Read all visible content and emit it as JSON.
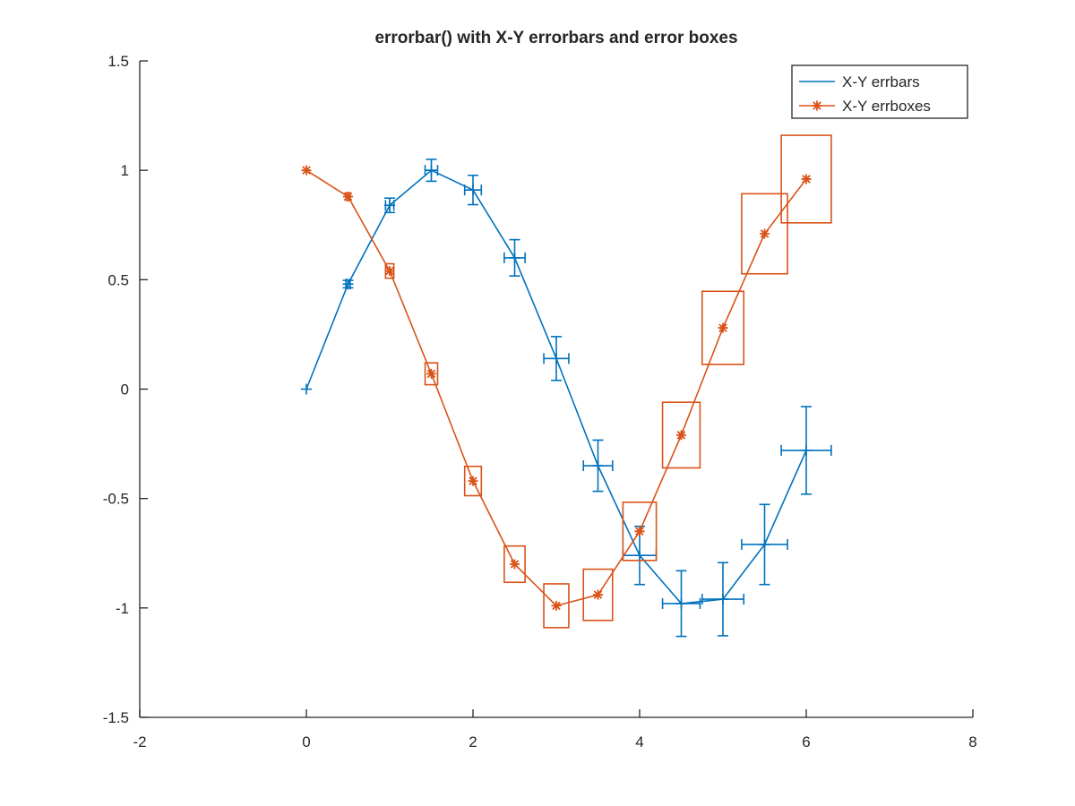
{
  "chart_data": {
    "type": "line",
    "title": "errorbar() with X-Y errorbars and error boxes",
    "xlabel": "",
    "ylabel": "",
    "xlim": [
      -2,
      8
    ],
    "ylim": [
      -1.5,
      1.5
    ],
    "xticks": [
      -2,
      0,
      2,
      4,
      6,
      8
    ],
    "yticks": [
      -1.5,
      -1,
      -0.5,
      0,
      0.5,
      1,
      1.5
    ],
    "xtick_labels": [
      "-2",
      "0",
      "2",
      "4",
      "6",
      "8"
    ],
    "ytick_labels": [
      "-1.5",
      "-1",
      "-0.5",
      "0",
      "0.5",
      "1",
      "1.5"
    ],
    "grid": false,
    "legend_position": "top-right",
    "series": [
      {
        "name": "X-Y errbars",
        "color": "#0072bd",
        "style": "errorbars",
        "marker": "plus",
        "x": [
          0,
          0.5,
          1,
          1.5,
          2,
          2.5,
          3,
          3.5,
          4,
          4.5,
          5,
          5.5,
          6
        ],
        "y": [
          0,
          0.48,
          0.84,
          1.0,
          0.91,
          0.6,
          0.14,
          -0.35,
          -0.76,
          -0.98,
          -0.96,
          -0.71,
          -0.28
        ],
        "xerr": [
          0,
          0.025,
          0.05,
          0.075,
          0.1,
          0.125,
          0.15,
          0.175,
          0.2,
          0.225,
          0.25,
          0.275,
          0.3
        ],
        "yerr": [
          0,
          0.017,
          0.033,
          0.05,
          0.067,
          0.083,
          0.1,
          0.117,
          0.133,
          0.15,
          0.167,
          0.183,
          0.2
        ]
      },
      {
        "name": "X-Y errboxes",
        "color": "#d95319",
        "style": "errorboxes",
        "marker": "asterisk",
        "x": [
          0,
          0.5,
          1,
          1.5,
          2,
          2.5,
          3,
          3.5,
          4,
          4.5,
          5,
          5.5,
          6
        ],
        "y": [
          1.0,
          0.88,
          0.54,
          0.07,
          -0.42,
          -0.8,
          -0.99,
          -0.94,
          -0.65,
          -0.21,
          0.28,
          0.71,
          0.96
        ],
        "xerr": [
          0,
          0.025,
          0.05,
          0.075,
          0.1,
          0.125,
          0.15,
          0.175,
          0.2,
          0.225,
          0.25,
          0.275,
          0.3
        ],
        "yerr": [
          0,
          0.017,
          0.033,
          0.05,
          0.067,
          0.083,
          0.1,
          0.117,
          0.133,
          0.15,
          0.167,
          0.183,
          0.2
        ]
      }
    ]
  }
}
